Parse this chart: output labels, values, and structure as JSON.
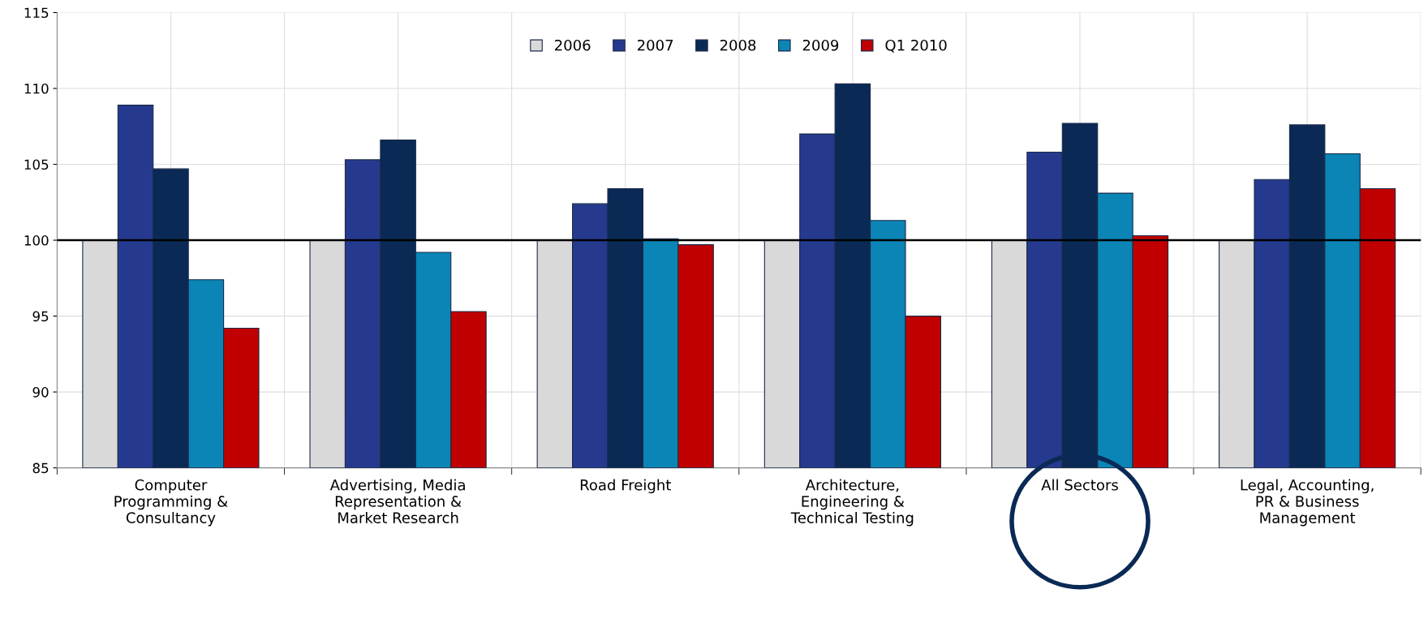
{
  "chart_data": {
    "type": "bar",
    "categories": [
      "Computer\nProgramming &\nConsultancy",
      "Advertising, Media\nRepresentation &\nMarket Research",
      "Road Freight",
      "Architecture,\nEngineering &\nTechnical Testing",
      "All Sectors",
      "Legal, Accounting,\nPR & Business\nManagement"
    ],
    "series": [
      {
        "name": "2006",
        "color": "#d9d9d9",
        "values": [
          100,
          100,
          100,
          100,
          100,
          100
        ]
      },
      {
        "name": "2007",
        "color": "#253a8e",
        "values": [
          108.9,
          105.3,
          102.4,
          107.0,
          105.8,
          104.0
        ]
      },
      {
        "name": "2008",
        "color": "#0a2a55",
        "values": [
          104.7,
          106.6,
          103.4,
          110.3,
          107.7,
          107.6
        ]
      },
      {
        "name": "2009",
        "color": "#0a85b5",
        "values": [
          97.4,
          99.2,
          100.1,
          101.3,
          103.1,
          105.7
        ]
      },
      {
        "name": "Q1 2010",
        "color": "#c00000",
        "values": [
          94.2,
          95.3,
          99.7,
          95.0,
          100.3,
          103.4
        ]
      }
    ],
    "ylim": [
      85,
      115
    ],
    "yticks": [
      85,
      90,
      95,
      100,
      105,
      110,
      115
    ],
    "ref_lines": [
      {
        "axis": "y",
        "value": 100,
        "color": "#000000",
        "line_style": "solid"
      }
    ],
    "grid": true,
    "legend": "top"
  }
}
